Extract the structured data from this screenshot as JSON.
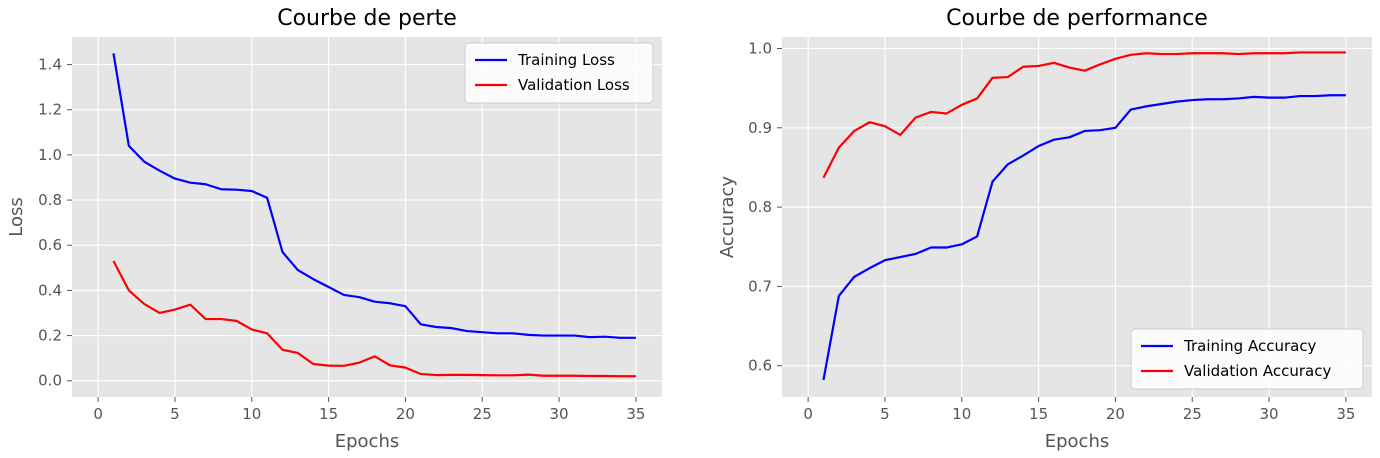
{
  "chart_data": [
    {
      "type": "line",
      "title": "Courbe de perte",
      "xlabel": "Epochs",
      "ylabel": "Loss",
      "xlim": [
        -1.7,
        36.7
      ],
      "ylim": [
        -0.072,
        1.522
      ],
      "xticks": [
        0,
        5,
        10,
        15,
        20,
        25,
        30,
        35
      ],
      "yticks": [
        0.0,
        0.2,
        0.4,
        0.6,
        0.8,
        1.0,
        1.2,
        1.4
      ],
      "ytick_labels": [
        "0.0",
        "0.2",
        "0.4",
        "0.6",
        "0.8",
        "1.0",
        "1.2",
        "1.4"
      ],
      "grid": true,
      "legend_position": "top-right",
      "x": [
        1,
        2,
        3,
        4,
        5,
        6,
        7,
        8,
        9,
        10,
        11,
        12,
        13,
        14,
        15,
        16,
        17,
        18,
        19,
        20,
        21,
        22,
        23,
        24,
        25,
        26,
        27,
        28,
        29,
        30,
        31,
        32,
        33,
        34,
        35
      ],
      "series": [
        {
          "name": "Training Loss",
          "color": "#0000ff",
          "values": [
            1.45,
            1.04,
            0.97,
            0.93,
            0.895,
            0.877,
            0.87,
            0.848,
            0.846,
            0.84,
            0.81,
            0.57,
            0.49,
            0.45,
            0.415,
            0.38,
            0.37,
            0.35,
            0.343,
            0.33,
            0.25,
            0.238,
            0.233,
            0.22,
            0.215,
            0.21,
            0.21,
            0.203,
            0.2,
            0.2,
            0.2,
            0.193,
            0.195,
            0.19,
            0.19
          ]
        },
        {
          "name": "Validation Loss",
          "color": "#ff0000",
          "values": [
            0.53,
            0.4,
            0.34,
            0.3,
            0.315,
            0.337,
            0.273,
            0.273,
            0.265,
            0.227,
            0.21,
            0.137,
            0.123,
            0.074,
            0.067,
            0.066,
            0.08,
            0.108,
            0.068,
            0.058,
            0.03,
            0.025,
            0.026,
            0.026,
            0.025,
            0.024,
            0.024,
            0.027,
            0.022,
            0.022,
            0.022,
            0.021,
            0.021,
            0.02,
            0.02
          ]
        }
      ]
    },
    {
      "type": "line",
      "title": "Courbe de performance",
      "xlabel": "Epochs",
      "ylabel": "Accuracy",
      "xlim": [
        -1.7,
        36.7
      ],
      "ylim": [
        0.5605,
        1.0145
      ],
      "xticks": [
        0,
        5,
        10,
        15,
        20,
        25,
        30,
        35
      ],
      "yticks": [
        0.6,
        0.7,
        0.8,
        0.9,
        1.0
      ],
      "ytick_labels": [
        "0.6",
        "0.7",
        "0.8",
        "0.9",
        "1.0"
      ],
      "grid": true,
      "legend_position": "bottom-right",
      "x": [
        1,
        2,
        3,
        4,
        5,
        6,
        7,
        8,
        9,
        10,
        11,
        12,
        13,
        14,
        15,
        16,
        17,
        18,
        19,
        20,
        21,
        22,
        23,
        24,
        25,
        26,
        27,
        28,
        29,
        30,
        31,
        32,
        33,
        34,
        35
      ],
      "series": [
        {
          "name": "Training Accuracy",
          "color": "#0000ff",
          "values": [
            0.582,
            0.688,
            0.712,
            0.723,
            0.733,
            0.737,
            0.741,
            0.749,
            0.749,
            0.753,
            0.763,
            0.832,
            0.854,
            0.865,
            0.877,
            0.885,
            0.888,
            0.896,
            0.897,
            0.9,
            0.923,
            0.927,
            0.93,
            0.933,
            0.935,
            0.936,
            0.936,
            0.937,
            0.939,
            0.938,
            0.938,
            0.94,
            0.94,
            0.941,
            0.941
          ]
        },
        {
          "name": "Validation Accuracy",
          "color": "#ff0000",
          "values": [
            0.837,
            0.875,
            0.896,
            0.907,
            0.902,
            0.891,
            0.913,
            0.92,
            0.918,
            0.929,
            0.937,
            0.963,
            0.964,
            0.977,
            0.978,
            0.982,
            0.976,
            0.972,
            0.98,
            0.987,
            0.992,
            0.994,
            0.993,
            0.993,
            0.994,
            0.994,
            0.994,
            0.993,
            0.994,
            0.994,
            0.994,
            0.995,
            0.995,
            0.995,
            0.995
          ]
        }
      ]
    }
  ]
}
